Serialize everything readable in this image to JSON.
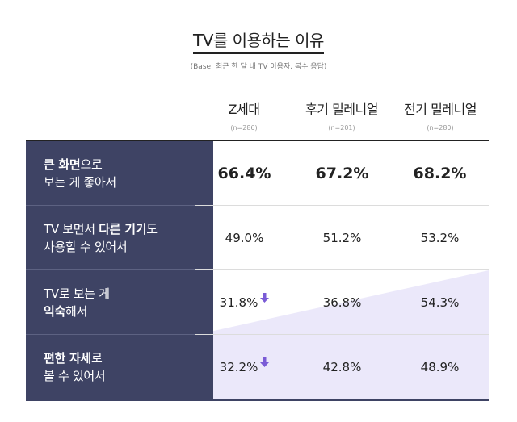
{
  "title": "TV를 이용하는 이유",
  "base_note": "(Base: 최근 한 달 내 TV 이용자, 복수 응답)",
  "colors": {
    "label_bg": "#3e4364",
    "accent_lavender": "#ebe8fa",
    "arrow": "#7a5bd6"
  },
  "chart_data": {
    "type": "table",
    "columns": [
      {
        "name": "Z세대",
        "n": "(n=286)"
      },
      {
        "name": "후기 밀레니얼",
        "n": "(n=201)"
      },
      {
        "name": "전기 밀레니얼",
        "n": "(n=280)"
      }
    ],
    "rows": [
      {
        "label_parts": [
          [
            {
              "t": "큰 화면",
              "b": true
            },
            {
              "t": "으로",
              "b": false
            }
          ],
          [
            {
              "t": "보는 게 좋아서",
              "b": false
            }
          ]
        ],
        "values": [
          "66.4%",
          "67.2%",
          "68.2%"
        ],
        "emphasis": true,
        "down_arrow_on_first": false
      },
      {
        "label_parts": [
          [
            {
              "t": "TV 보면서 ",
              "b": false
            },
            {
              "t": "다른 기기",
              "b": true
            },
            {
              "t": "도",
              "b": false
            }
          ],
          [
            {
              "t": "사용할 수 있어서",
              "b": false
            }
          ]
        ],
        "values": [
          "49.0%",
          "51.2%",
          "53.2%"
        ],
        "emphasis": false,
        "down_arrow_on_first": false
      },
      {
        "label_parts": [
          [
            {
              "t": "TV로 보는 게",
              "b": false
            }
          ],
          [
            {
              "t": "익숙",
              "b": true
            },
            {
              "t": "해서",
              "b": false
            }
          ]
        ],
        "values": [
          "31.8%",
          "36.8%",
          "54.3%"
        ],
        "emphasis": false,
        "down_arrow_on_first": true
      },
      {
        "label_parts": [
          [
            {
              "t": "편한 자세",
              "b": true
            },
            {
              "t": "로",
              "b": false
            }
          ],
          [
            {
              "t": "볼 수 있어서",
              "b": false
            }
          ]
        ],
        "values": [
          "32.2%",
          "42.8%",
          "48.9%"
        ],
        "emphasis": false,
        "down_arrow_on_first": true
      }
    ]
  }
}
